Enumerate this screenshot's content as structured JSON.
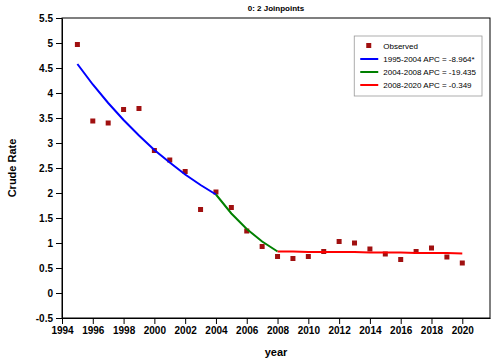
{
  "chart_data": {
    "type": "line",
    "title": "0: 2 Joinpoints",
    "x_label": "year",
    "y_label": "Crude Rate",
    "x": [
      1995,
      1996,
      1997,
      1998,
      1999,
      2000,
      2001,
      2002,
      2003,
      2004,
      2005,
      2006,
      2007,
      2008,
      2009,
      2010,
      2011,
      2012,
      2013,
      2014,
      2015,
      2016,
      2017,
      2018,
      2019,
      2020
    ],
    "xlim": [
      1994,
      2021.8
    ],
    "xticks": [
      1994,
      1996,
      1998,
      2000,
      2002,
      2004,
      2006,
      2008,
      2010,
      2012,
      2014,
      2016,
      2018,
      2020
    ],
    "ylim": [
      -0.5,
      5.5
    ],
    "yticks": [
      -0.5,
      0,
      0.5,
      1,
      1.5,
      2,
      2.5,
      3,
      3.5,
      4,
      4.5,
      5,
      5.5
    ],
    "grid": false,
    "legend": "upper right",
    "series": [
      {
        "name": "Observed",
        "type": "scatter",
        "marker": "square",
        "color": "#a01010",
        "values": [
          4.97,
          3.44,
          3.4,
          3.67,
          3.69,
          2.85,
          2.66,
          2.43,
          1.67,
          2.02,
          1.71,
          1.24,
          0.93,
          0.73,
          0.69,
          0.73,
          0.83,
          1.03,
          1.0,
          0.88,
          0.78,
          0.67,
          0.83,
          0.9,
          0.72,
          0.6
        ]
      },
      {
        "name": "1995-2004 APC = -8.964*",
        "type": "line",
        "line_style": "solid",
        "color": "#0000ff",
        "values": [
          4.58,
          4.17,
          3.8,
          3.46,
          3.15,
          2.86,
          2.61,
          2.37,
          2.16,
          1.97,
          null,
          null,
          null,
          null,
          null,
          null,
          null,
          null,
          null,
          null,
          null,
          null,
          null,
          null,
          null,
          null
        ]
      },
      {
        "name": "2004-2008 APC = -19.435",
        "type": "line",
        "line_style": "solid",
        "color": "#008000",
        "values": [
          null,
          null,
          null,
          null,
          null,
          null,
          null,
          null,
          null,
          1.97,
          1.59,
          1.28,
          1.03,
          0.83,
          null,
          null,
          null,
          null,
          null,
          null,
          null,
          null,
          null,
          null,
          null,
          null
        ]
      },
      {
        "name": "2008-2020 APC = -0.349",
        "type": "line",
        "line_style": "solid",
        "color": "#ff0000",
        "values": [
          null,
          null,
          null,
          null,
          null,
          null,
          null,
          null,
          null,
          null,
          null,
          null,
          null,
          0.83,
          0.83,
          0.82,
          0.82,
          0.82,
          0.82,
          0.81,
          0.81,
          0.81,
          0.8,
          0.8,
          0.8,
          0.79
        ]
      }
    ]
  }
}
